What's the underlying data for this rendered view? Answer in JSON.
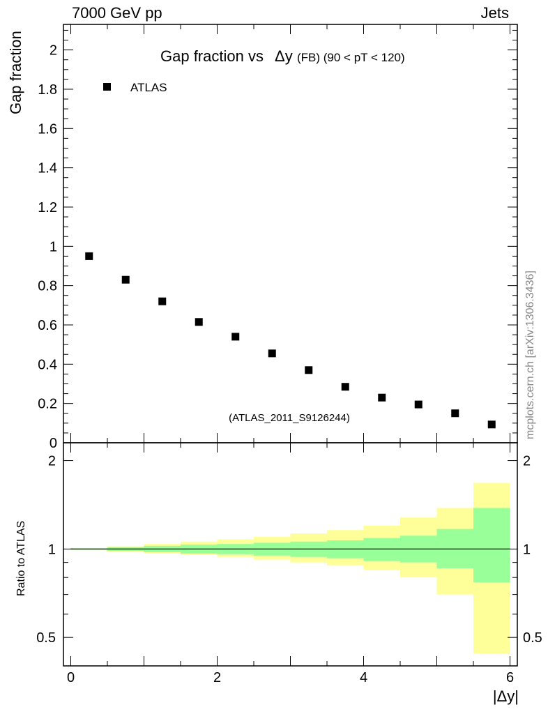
{
  "header": {
    "left": "7000 GeV pp",
    "right": "Jets"
  },
  "side_note": "mcplots.cern.ch [arXiv:1306.3436]",
  "chart_data": [
    {
      "type": "scatter",
      "title_main": "Gap fraction vs",
      "title_symbol": "Δy",
      "title_detail": "(FB) (90 < pT < 120)",
      "ylabel": "Gap fraction",
      "xlabel": "|Δy|",
      "watermark": "(ATLAS_2011_S9126244)",
      "legend": "ATLAS",
      "xlim": [
        -0.1,
        6.1
      ],
      "ylim": [
        0,
        2.13
      ],
      "yticks": [
        0,
        0.2,
        0.4,
        0.6,
        0.8,
        1,
        1.2,
        1.4,
        1.6,
        1.8,
        2
      ],
      "ytick_labels": [
        "0",
        "0.2",
        "0.4",
        "0.6",
        "0.8",
        "1",
        "1.2",
        "1.4",
        "1.6",
        "1.8",
        "2"
      ],
      "series": [
        {
          "name": "ATLAS",
          "color": "#000000",
          "x": [
            0.25,
            0.75,
            1.25,
            1.75,
            2.25,
            2.75,
            3.25,
            3.75,
            4.25,
            4.75,
            5.25,
            5.75
          ],
          "y": [
            0.95,
            0.83,
            0.72,
            0.615,
            0.54,
            0.455,
            0.37,
            0.285,
            0.23,
            0.195,
            0.15,
            0.093
          ]
        }
      ]
    },
    {
      "type": "area",
      "ylabel": "Ratio to ATLAS",
      "xlabel": "|Δy|",
      "xlim": [
        -0.1,
        6.1
      ],
      "ylim": [
        0.4,
        2.3
      ],
      "log_y": true,
      "yticks": [
        0.5,
        1,
        2
      ],
      "ytick_labels": [
        "0.5",
        "1",
        "2"
      ],
      "xticks": [
        0,
        2,
        4,
        6
      ],
      "xtick_labels": [
        "0",
        "2",
        "4",
        "6"
      ],
      "bins": [
        0,
        0.5,
        1,
        1.5,
        2,
        2.5,
        3,
        3.5,
        4,
        4.5,
        5,
        5.5,
        6
      ],
      "stat_band": {
        "color": "#99ff99",
        "lo": [
          0.995,
          0.985,
          0.975,
          0.965,
          0.96,
          0.95,
          0.94,
          0.93,
          0.91,
          0.9,
          0.86,
          0.77
        ],
        "hi": [
          1.005,
          1.015,
          1.025,
          1.035,
          1.04,
          1.05,
          1.06,
          1.07,
          1.09,
          1.11,
          1.17,
          1.38
        ]
      },
      "total_band": {
        "color": "#ffff99",
        "lo": [
          0.995,
          0.975,
          0.965,
          0.955,
          0.94,
          0.92,
          0.9,
          0.88,
          0.85,
          0.8,
          0.7,
          0.44
        ],
        "hi": [
          1.005,
          1.02,
          1.04,
          1.06,
          1.08,
          1.1,
          1.13,
          1.16,
          1.2,
          1.28,
          1.38,
          1.68
        ]
      },
      "reference_line": 1
    }
  ]
}
